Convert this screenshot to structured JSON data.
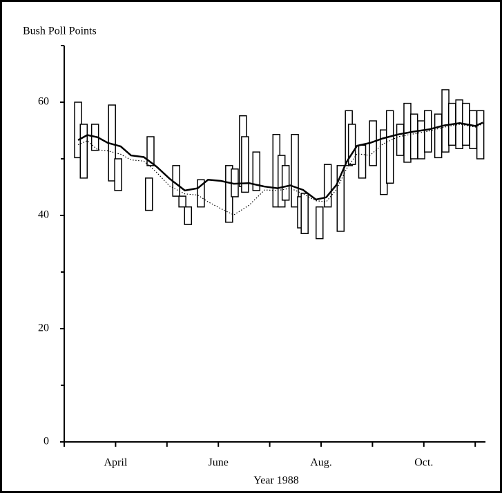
{
  "chart_data": {
    "type": "range",
    "ylabel": "Bush Poll Points",
    "xlabel": "Year 1988",
    "xlim": [
      0,
      8.2
    ],
    "xticks": [
      {
        "value": 1,
        "label": "April"
      },
      {
        "value": 3,
        "label": "June"
      },
      {
        "value": 5,
        "label": "Aug."
      },
      {
        "value": 7,
        "label": "Oct."
      }
    ],
    "xminorticks": [
      0,
      2,
      4,
      6,
      8
    ],
    "ylim": [
      0,
      70
    ],
    "yticks": [
      0,
      20,
      40,
      60
    ],
    "yminorticks": [
      10,
      30,
      50,
      70
    ],
    "color": "#000000",
    "polls": {
      "x": [
        0.27,
        0.38,
        0.6,
        0.93,
        1.05,
        1.65,
        1.68,
        2.18,
        2.3,
        2.41,
        2.66,
        3.21,
        3.32,
        3.48,
        3.52,
        3.74,
        4.13,
        4.23,
        4.31,
        4.49,
        4.61,
        4.68,
        4.97,
        5.13,
        5.38,
        5.54,
        5.6,
        5.8,
        6.01,
        6.22,
        6.34,
        6.54,
        6.68,
        6.81,
        6.95,
        7.08,
        7.28,
        7.42,
        7.55,
        7.69,
        7.82,
        7.96,
        8.1
      ],
      "high": [
        60,
        56.1,
        56.1,
        59.5,
        50,
        46.6,
        53.9,
        48.8,
        43.4,
        41.5,
        46.3,
        48.8,
        48.2,
        57.6,
        53.9,
        51.2,
        54.3,
        50.6,
        48.8,
        54.3,
        43.3,
        43.9,
        41.5,
        49,
        48.8,
        58.5,
        56.1,
        52.4,
        56.7,
        55.1,
        58.5,
        56.1,
        59.8,
        57.9,
        56.7,
        58.5,
        57.9,
        62.2,
        59.8,
        60.4,
        59.8,
        58.5,
        58.5
      ],
      "low": [
        50.2,
        46.6,
        51.5,
        46.1,
        44.4,
        40.9,
        48.8,
        43.4,
        41.5,
        38.4,
        41.5,
        38.8,
        43.3,
        45.1,
        44.1,
        44.4,
        41.5,
        41.5,
        42.7,
        41.5,
        37.8,
        36.8,
        35.9,
        41.5,
        37.2,
        48.8,
        49,
        46.6,
        48.8,
        43.7,
        45.7,
        50.6,
        49.4,
        50,
        50,
        51.2,
        50.2,
        51.2,
        52.4,
        51.8,
        52.4,
        51.8,
        50
      ]
    },
    "lines": [
      {
        "style": "solid",
        "x": [
          0.27,
          0.45,
          0.65,
          0.85,
          1.1,
          1.3,
          1.55,
          1.8,
          2.05,
          2.35,
          2.6,
          2.8,
          3.05,
          3.3,
          3.6,
          3.9,
          4.15,
          4.4,
          4.65,
          4.9,
          5.1,
          5.3,
          5.5,
          5.7,
          5.95,
          6.2,
          6.5,
          6.8,
          7.1,
          7.4,
          7.7,
          8.0,
          8.15
        ],
        "values": [
          53.3,
          54.2,
          53.8,
          52.8,
          52.2,
          50.6,
          50.3,
          48.6,
          46.5,
          44.4,
          44.8,
          46.3,
          46.1,
          45.6,
          45.7,
          45.1,
          44.8,
          45.3,
          44.5,
          42.8,
          43.2,
          45.4,
          49.5,
          52.3,
          52.8,
          53.6,
          54.3,
          54.8,
          55.2,
          55.9,
          56.3,
          55.8,
          56.4
        ]
      },
      {
        "style": "dotted",
        "x": [
          0.27,
          0.45,
          0.65,
          0.85,
          1.1,
          1.3,
          1.55,
          1.8,
          2.05,
          2.35,
          2.6,
          2.8,
          3.05,
          3.3,
          3.6,
          3.9,
          4.15,
          4.4,
          4.65,
          4.9,
          5.1,
          5.3,
          5.5,
          5.7,
          5.95,
          6.2,
          6.5,
          6.8,
          7.1,
          7.4,
          7.7,
          8.0,
          8.15
        ],
        "values": [
          52.5,
          53.2,
          51.6,
          51.4,
          50.8,
          49.8,
          49.6,
          47.6,
          45.2,
          43.8,
          43.6,
          42.4,
          41.2,
          40.1,
          41.8,
          44.5,
          44.4,
          44.8,
          43.8,
          42.6,
          42.4,
          44.6,
          48.3,
          50.9,
          50.6,
          52.6,
          53.9,
          54.4,
          54.9,
          55.6,
          56.1,
          55.6,
          56.2
        ]
      }
    ]
  }
}
